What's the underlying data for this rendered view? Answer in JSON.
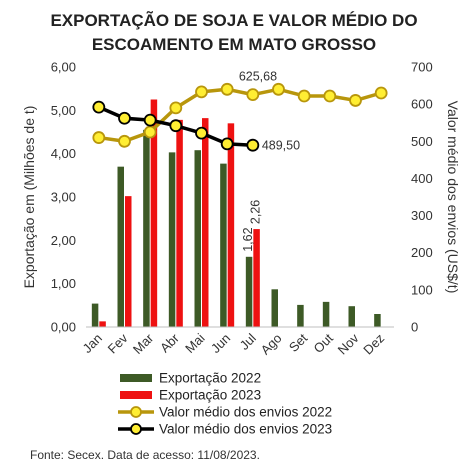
{
  "title_line1": "EXPORTAÇÃO DE SOJA E  VALOR MÉDIO DO",
  "title_line2": "ESCOAMENTO EM MATO GROSSO",
  "source": "Fonte: Secex. Data de acesso: 11/08/2023.",
  "chart_data": {
    "type": "bar",
    "categories": [
      "Jan",
      "Fev",
      "Mar",
      "Abr",
      "Mai",
      "Jun",
      "Jul",
      "Ago",
      "Set",
      "Out",
      "Nov",
      "Dez"
    ],
    "ylabel": "Exportação em (Milhões de t)",
    "ylabel_right": "Valor médio dos envios (US$/t)",
    "ylim": [
      0,
      6
    ],
    "ylim_right": [
      0,
      700
    ],
    "yticks": [
      "0,00",
      "1,00",
      "2,00",
      "3,00",
      "4,00",
      "5,00",
      "6,00"
    ],
    "yticks_right": [
      "0",
      "100",
      "200",
      "300",
      "400",
      "500",
      "600",
      "700"
    ],
    "grid": false,
    "legend_position": "bottom",
    "bar_series": [
      {
        "name": "Exportação 2022",
        "color": "#3d5a26",
        "values": [
          0.54,
          3.7,
          4.55,
          4.03,
          4.08,
          3.77,
          1.62,
          0.87,
          0.51,
          0.58,
          0.48,
          0.3
        ]
      },
      {
        "name": "Exportação 2023",
        "color": "#ee1111",
        "values": [
          0.13,
          3.02,
          5.25,
          4.78,
          4.82,
          4.7,
          2.26,
          null,
          null,
          null,
          null,
          null
        ]
      }
    ],
    "line_series": [
      {
        "name": "Valor médio dos envios 2022",
        "color": "#b8960c",
        "values": [
          510,
          500,
          525,
          590,
          633,
          640,
          625.68,
          640,
          622,
          622,
          610,
          630
        ]
      },
      {
        "name": "Valor médio dos envios 2023",
        "color": "#000000",
        "values": [
          592,
          562,
          557,
          542,
          522,
          493,
          489.5,
          null,
          null,
          null,
          null,
          null
        ]
      }
    ],
    "annotations": [
      {
        "series": "Exportação 2022",
        "category": "Jul",
        "text": "1,62"
      },
      {
        "series": "Exportação 2023",
        "category": "Jul",
        "text": "2,26"
      },
      {
        "series": "Valor médio dos envios 2022",
        "category": "Jul",
        "text": "625,68"
      },
      {
        "series": "Valor médio dos envios 2023",
        "category": "Jul",
        "text": "489,50"
      }
    ]
  }
}
